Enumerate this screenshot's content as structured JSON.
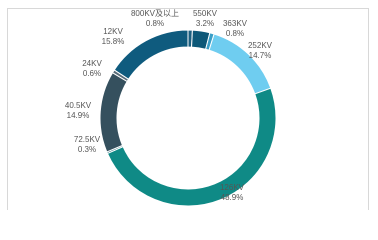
{
  "chart_data": {
    "type": "donut",
    "categories": [
      "800KV及以上",
      "550KV",
      "363KV",
      "252KV",
      "126KV",
      "72.5KV",
      "40.5KV",
      "24KV",
      "12KV"
    ],
    "values": [
      0.8,
      3.2,
      0.8,
      14.7,
      48.9,
      0.3,
      14.9,
      0.6,
      15.8
    ],
    "value_labels": [
      "0.8%",
      "3.2%",
      "0.8%",
      "14.7%",
      "48.9%",
      "0.3%",
      "14.9%",
      "0.6%",
      "15.8%"
    ],
    "colors": [
      "#1b5f80",
      "#0d5878",
      "#3a9ec6",
      "#6fcdf0",
      "#0f8a86",
      "#2d6a78",
      "#35505e",
      "#596c79",
      "#0f5b7e"
    ]
  }
}
